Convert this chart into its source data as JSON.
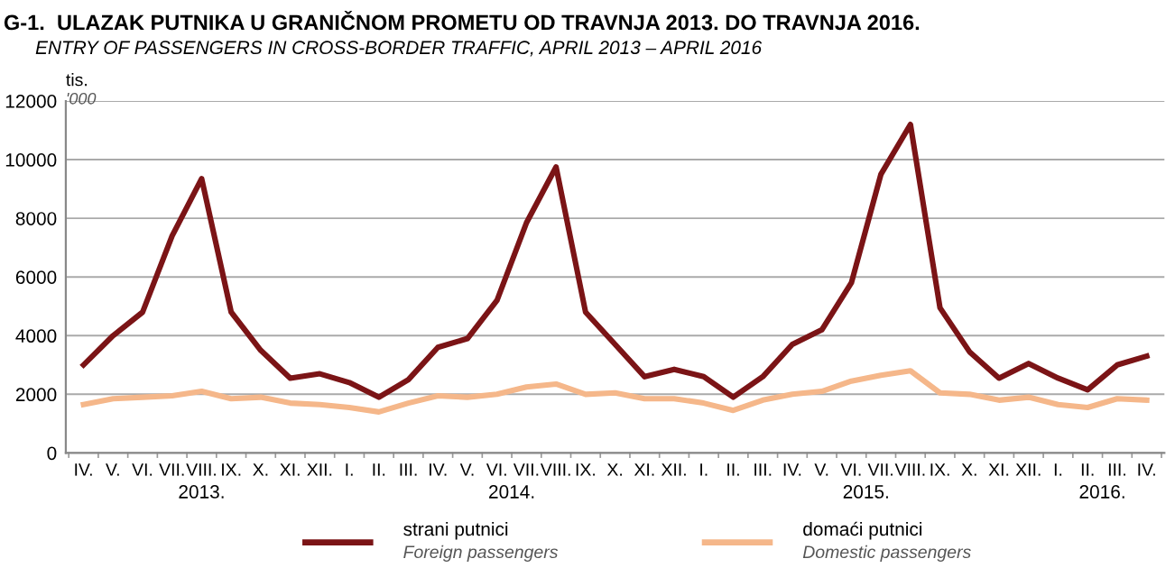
{
  "chart_data": {
    "type": "line",
    "title": "G-1.  ULAZAK PUTNIKA U GRANIČNOM PROMETU OD TRAVNJA 2013. DO TRAVNJA 2016.",
    "subtitle": "ENTRY OF PASSENGERS IN CROSS-BORDER TRAFFIC, APRIL 2013 – APRIL 2016",
    "ylabel": "tis.\n'000",
    "categories": [
      "IV.",
      "V.",
      "VI.",
      "VII.",
      "VIII.",
      "IX.",
      "X.",
      "XI.",
      "XII.",
      "I.",
      "II.",
      "III.",
      "IV.",
      "V.",
      "VI.",
      "VII.",
      "VIII.",
      "IX.",
      "X.",
      "XI.",
      "XII.",
      "I.",
      "II.",
      "III.",
      "IV.",
      "V.",
      "VI.",
      "VII.",
      "VIII.",
      "IX.",
      "X.",
      "XI.",
      "XII.",
      "I.",
      "II.",
      "III.",
      "IV."
    ],
    "series": [
      {
        "name": "strani putnici\nForeign passengers",
        "color": "#7b1416",
        "values": [
          3000,
          4000,
          4800,
          7400,
          9350,
          4800,
          3500,
          2550,
          2700,
          2400,
          1900,
          2500,
          3600,
          3900,
          5200,
          7850,
          9750,
          4800,
          3700,
          2600,
          2850,
          2600,
          1900,
          2600,
          3700,
          4200,
          5800,
          9500,
          11200,
          4950,
          3450,
          2550,
          3050,
          2550,
          2150,
          3000,
          3300
        ]
      },
      {
        "name": "domaći putnici\nDomestic passengers",
        "color": "#f5b78a",
        "values": [
          1650,
          1850,
          1900,
          1950,
          2100,
          1850,
          1900,
          1700,
          1650,
          1550,
          1400,
          1700,
          1950,
          1900,
          2000,
          2250,
          2350,
          2000,
          2050,
          1850,
          1850,
          1700,
          1450,
          1800,
          2000,
          2100,
          2450,
          2650,
          2800,
          2050,
          2000,
          1800,
          1900,
          1650,
          1550,
          1850,
          1800
        ]
      }
    ],
    "annotations": [
      "2013.",
      "2014.",
      "2015.",
      "2016."
    ],
    "ylim": [
      0,
      12000
    ],
    "yticks": [
      0,
      2000,
      4000,
      6000,
      8000,
      10000,
      12000
    ],
    "grid": "y",
    "legend": "bottom",
    "marker": "none",
    "line_style": "solid"
  }
}
